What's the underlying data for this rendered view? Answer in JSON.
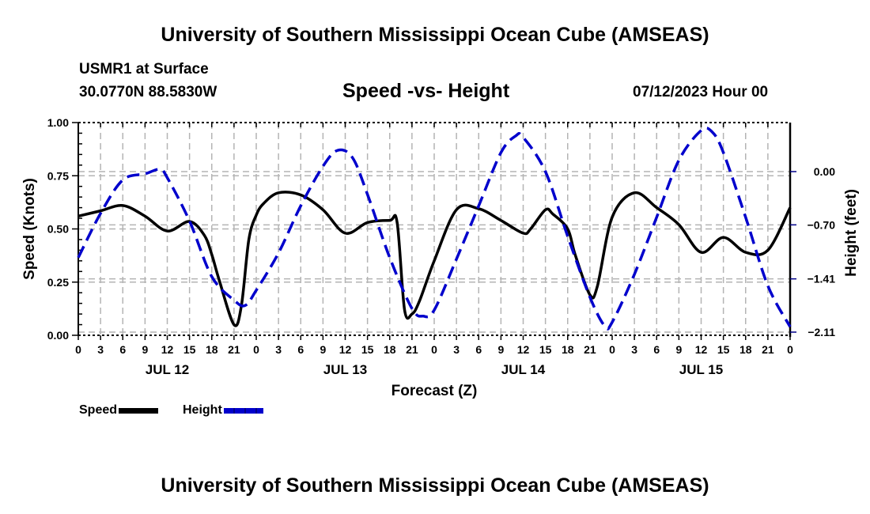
{
  "header": {
    "title": "University of Southern Mississippi Ocean Cube (AMSEAS)",
    "station": "USMR1 at Surface",
    "coordinates": "30.0770N  88.5830W",
    "chart_title": "Speed -vs- Height",
    "datetime": "07/12/2023 Hour 00"
  },
  "footer": {
    "title": "University of Southern Mississippi Ocean Cube (AMSEAS)"
  },
  "legend": {
    "speed_label": "Speed",
    "height_label": "Height"
  },
  "colors": {
    "speed": "#000000",
    "height": "#0000cc",
    "grid": "#b4b4b4"
  },
  "chart_data": {
    "type": "line",
    "title": "Speed -vs- Height",
    "xlabel": "Forecast (Z)",
    "ylabel": "Speed (Knots)",
    "y2label": "Height (feet)",
    "xlim": [
      0,
      96
    ],
    "ylim": [
      0,
      1.0
    ],
    "y2lim": [
      -2.11,
      0.63
    ],
    "grid": true,
    "legend_position": "bottom-left",
    "x_tick_labels": [
      "0",
      "3",
      "6",
      "9",
      "12",
      "15",
      "18",
      "21",
      "0",
      "3",
      "6",
      "9",
      "12",
      "15",
      "18",
      "21",
      "0",
      "3",
      "6",
      "9",
      "12",
      "15",
      "18",
      "21",
      "0",
      "3",
      "6",
      "9",
      "12",
      "15",
      "18",
      "21",
      "0"
    ],
    "x_date_labels": [
      {
        "label": "JUL 12",
        "hour": 12
      },
      {
        "label": "JUL 13",
        "hour": 36
      },
      {
        "label": "JUL 14",
        "hour": 60
      },
      {
        "label": "JUL 15",
        "hour": 84
      }
    ],
    "y_ticks": [
      "0.00",
      "0.25",
      "0.50",
      "0.75",
      "1.00"
    ],
    "y2_ticks": [
      "-2.11",
      "-1.41",
      "-0.70",
      "0.00"
    ],
    "series": [
      {
        "name": "Speed",
        "axis": "left",
        "x": [
          0,
          3,
          6,
          9,
          12,
          15,
          17,
          18,
          19,
          21,
          22,
          23,
          24,
          25,
          27,
          30,
          33,
          36,
          39,
          42,
          43,
          44,
          45,
          46,
          48,
          51,
          54,
          57,
          60,
          61,
          63,
          64,
          66,
          67,
          69,
          70,
          72,
          75,
          78,
          81,
          84,
          87,
          90,
          93,
          96
        ],
        "values": [
          0.56,
          0.585,
          0.61,
          0.56,
          0.49,
          0.535,
          0.47,
          0.38,
          0.26,
          0.05,
          0.14,
          0.45,
          0.565,
          0.62,
          0.67,
          0.66,
          0.59,
          0.48,
          0.53,
          0.54,
          0.53,
          0.12,
          0.1,
          0.16,
          0.35,
          0.59,
          0.595,
          0.54,
          0.48,
          0.5,
          0.59,
          0.57,
          0.5,
          0.38,
          0.19,
          0.23,
          0.555,
          0.67,
          0.6,
          0.52,
          0.39,
          0.46,
          0.39,
          0.4,
          0.6
        ]
      },
      {
        "name": "Height",
        "axis": "right",
        "x": [
          0,
          3,
          6,
          9,
          11,
          12,
          15,
          18,
          21,
          22.5,
          24,
          27,
          30,
          33,
          35,
          37,
          39,
          42,
          45,
          46.5,
          48,
          51,
          54,
          57,
          59,
          60,
          63,
          66,
          69,
          71,
          72,
          75,
          78,
          81,
          84,
          85.5,
          87,
          90,
          93,
          96
        ],
        "values": [
          -1.13,
          -0.55,
          -0.11,
          -0.03,
          0.03,
          -0.08,
          -0.65,
          -1.38,
          -1.69,
          -1.76,
          -1.56,
          -1.07,
          -0.45,
          0.07,
          0.28,
          0.18,
          -0.3,
          -1.13,
          -1.8,
          -1.9,
          -1.82,
          -1.15,
          -0.45,
          0.25,
          0.47,
          0.45,
          0.0,
          -0.85,
          -1.65,
          -2.03,
          -1.98,
          -1.35,
          -0.6,
          0.15,
          0.54,
          0.52,
          0.25,
          -0.6,
          -1.5,
          -2.04
        ]
      }
    ]
  }
}
